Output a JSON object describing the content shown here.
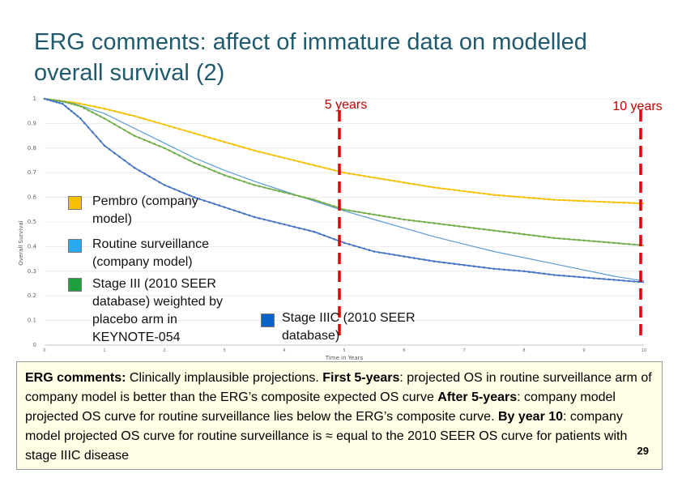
{
  "slide": {
    "title": "ERG comments: affect of immature data on modelled overall survival (2)",
    "page_number": "29"
  },
  "colors": {
    "pembro": "#f5c000",
    "routine": "#5b9bd5",
    "stage3": "#70ad47",
    "stage3c": "#4472c4",
    "marker": "#e00000"
  },
  "chart_data": {
    "type": "line",
    "xlabel": "Time in Years",
    "ylabel": "Overall Survival",
    "xlim": [
      0,
      10
    ],
    "ylim": [
      0,
      1
    ],
    "x_ticks": [
      "0",
      "1",
      "2",
      "3",
      "4",
      "5",
      "6",
      "7",
      "8",
      "9",
      "10"
    ],
    "y_ticks": [
      "0",
      "0.1",
      "0.2",
      "0.3",
      "0.4",
      "0.5",
      "0.6",
      "0.7",
      "0.8",
      "0.9",
      "1"
    ],
    "markers": [
      {
        "x": 5,
        "label": "5 years"
      },
      {
        "x": 10,
        "label": "10 years"
      }
    ],
    "series": [
      {
        "name": "Pembro (company model)",
        "x": [
          0,
          0.5,
          1,
          1.5,
          2,
          2.5,
          3,
          3.5,
          4,
          4.5,
          5,
          5.5,
          6,
          6.5,
          7,
          7.5,
          8,
          8.5,
          9,
          9.5,
          10
        ],
        "y": [
          1.0,
          0.985,
          0.96,
          0.93,
          0.895,
          0.86,
          0.825,
          0.79,
          0.76,
          0.73,
          0.7,
          0.68,
          0.66,
          0.64,
          0.625,
          0.61,
          0.6,
          0.59,
          0.585,
          0.58,
          0.575
        ]
      },
      {
        "name": "Routine surveillance (company model)",
        "x": [
          0,
          0.5,
          1,
          1.5,
          2,
          2.5,
          3,
          3.5,
          4,
          4.5,
          5,
          5.5,
          6,
          6.5,
          7,
          7.5,
          8,
          8.5,
          9,
          9.5,
          10
        ],
        "y": [
          1.0,
          0.98,
          0.94,
          0.88,
          0.82,
          0.76,
          0.71,
          0.665,
          0.625,
          0.585,
          0.545,
          0.51,
          0.475,
          0.44,
          0.41,
          0.38,
          0.355,
          0.33,
          0.305,
          0.28,
          0.26
        ]
      },
      {
        "name": "Stage III (2010 SEER database) weighted by placebo arm in KEYNOTE-054",
        "x": [
          0,
          0.3,
          0.6,
          1,
          1.5,
          2,
          2.5,
          3,
          3.5,
          4,
          4.5,
          5,
          5.5,
          6,
          6.5,
          7,
          7.5,
          8,
          8.5,
          9,
          9.5,
          10
        ],
        "y": [
          1.0,
          0.99,
          0.97,
          0.92,
          0.85,
          0.8,
          0.74,
          0.69,
          0.65,
          0.62,
          0.59,
          0.55,
          0.53,
          0.51,
          0.495,
          0.48,
          0.465,
          0.45,
          0.435,
          0.425,
          0.415,
          0.405
        ]
      },
      {
        "name": "Stage IIIC (2010 SEER database)",
        "x": [
          0,
          0.3,
          0.6,
          1,
          1.5,
          2,
          2.5,
          3,
          3.5,
          4,
          4.5,
          5,
          5.5,
          6,
          6.5,
          7,
          7.5,
          8,
          8.5,
          9,
          9.5,
          10
        ],
        "y": [
          1.0,
          0.98,
          0.92,
          0.81,
          0.72,
          0.65,
          0.6,
          0.56,
          0.52,
          0.49,
          0.46,
          0.415,
          0.38,
          0.36,
          0.34,
          0.325,
          0.31,
          0.3,
          0.285,
          0.275,
          0.265,
          0.255
        ]
      }
    ]
  },
  "legend": {
    "pembro": "Pembro (company model)",
    "routine": "Routine surveillance (company model)",
    "stage3": "Stage III (2010 SEER database) weighted by placebo arm in KEYNOTE-054",
    "stage3c": "Stage IIIC (2010 SEER database)"
  },
  "comment": {
    "p1_bold": "ERG comments:",
    "p1": " Clinically implausible projections. ",
    "p2_bold": "First 5-years",
    "p2": ": projected OS in routine surveillance arm of company model is better than the ERG’s composite expected OS curve ",
    "p3_bold": "After 5-years",
    "p3": ": company model projected OS curve for routine surveillance lies below the ERG’s composite curve. ",
    "p4_bold": "By year 10",
    "p4": ": company model projected OS curve for routine surveillance is ≈ equal to the 2010 SEER OS curve for patients with stage IIIC disease"
  }
}
